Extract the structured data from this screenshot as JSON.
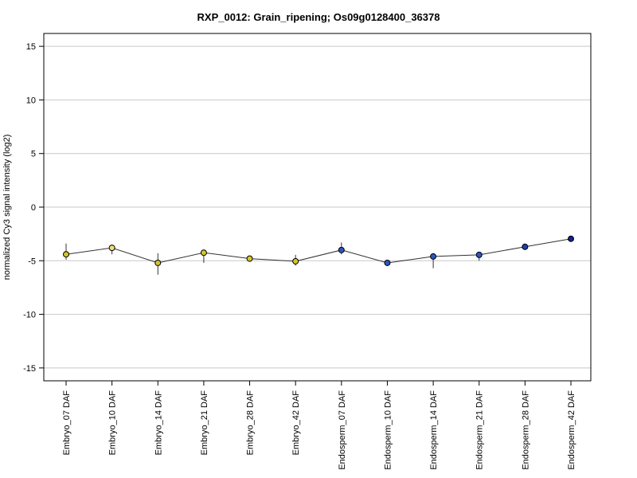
{
  "chart_data": {
    "type": "line",
    "title": "RXP_0012: Grain_ripening; Os09g0128400_36378",
    "xlabel": "",
    "ylabel": "normalized Cy3 signal intensity (log2)",
    "ylim": [
      -16.2,
      16.2
    ],
    "yticks": [
      -15,
      -10,
      -5,
      0,
      5,
      10,
      15
    ],
    "grid": true,
    "categories": [
      "Embryo_07 DAF",
      "Embryo_10 DAF",
      "Embryo_14 DAF",
      "Embryo_21 DAF",
      "Embryo_28 DAF",
      "Embryo_42 DAF",
      "Endosperm_07 DAF",
      "Endosperm_10 DAF",
      "Endosperm_14 DAF",
      "Endosperm_21 DAF",
      "Endosperm_28 DAF",
      "Endosperm_42 DAF"
    ],
    "series": [
      {
        "values": [
          -4.4,
          -3.8,
          -5.2,
          -4.25,
          -4.8,
          -5.05,
          -4.0,
          -5.2,
          -4.6,
          -4.45,
          -3.7,
          -2.95
        ],
        "err_low": [
          -4.9,
          -4.4,
          -6.3,
          -5.2,
          -5.1,
          -5.45,
          -4.4,
          -5.45,
          -5.7,
          -5.0,
          -3.85,
          -3.1
        ],
        "err_high": [
          -3.4,
          -3.5,
          -4.3,
          -4.05,
          -4.6,
          -4.45,
          -3.3,
          -4.95,
          -4.35,
          -4.3,
          -3.55,
          -2.8
        ],
        "point_colors": [
          "#d4c62a",
          "#ebe07a",
          "#d4c62a",
          "#d4c62a",
          "#d4c62a",
          "#d4c62a",
          "#2a56c6",
          "#2a56c6",
          "#2a56c6",
          "#2a56c6",
          "#1a3fb0",
          "#10208f"
        ]
      }
    ],
    "colors": {
      "line": "#333333",
      "grid": "#c8c8c8",
      "frame": "#000000"
    }
  }
}
